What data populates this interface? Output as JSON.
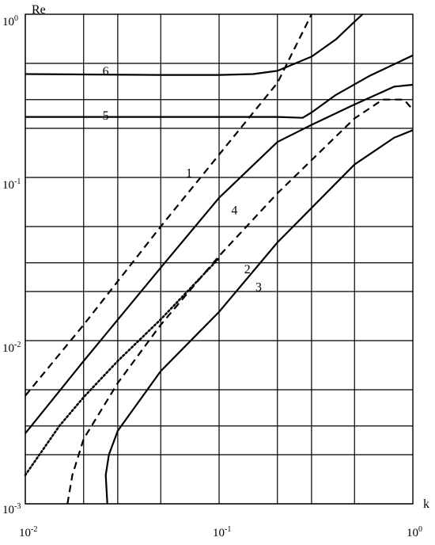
{
  "chart_data": {
    "type": "line",
    "x_scale": "log",
    "y_scale": "log",
    "xlim": [
      0.01,
      1
    ],
    "ylim": [
      0.001,
      1
    ],
    "xlabel": "k",
    "ylabel": "Re",
    "grid": true,
    "x_major_ticks": [
      {
        "value": 0.01,
        "base": "10",
        "exp": "-2"
      },
      {
        "value": 0.1,
        "base": "10",
        "exp": "-1"
      },
      {
        "value": 1,
        "base": "10",
        "exp": "0"
      }
    ],
    "y_major_ticks": [
      {
        "value": 0.001,
        "base": "10",
        "exp": "-3"
      },
      {
        "value": 0.01,
        "base": "10",
        "exp": "-2"
      },
      {
        "value": 0.1,
        "base": "10",
        "exp": "-1"
      },
      {
        "value": 1,
        "base": "10",
        "exp": "0"
      }
    ],
    "series": [
      {
        "name": "1",
        "style": "dashed",
        "label_at": [
          0.07,
          0.105
        ],
        "x": [
          0.01,
          0.02,
          0.05,
          0.1,
          0.2,
          0.3
        ],
        "y": [
          0.0046,
          0.0125,
          0.05,
          0.138,
          0.38,
          1.0
        ]
      },
      {
        "name": "2",
        "style": "dashed",
        "label_at": [
          0.14,
          0.027
        ],
        "x": [
          0.0165,
          0.0175,
          0.02,
          0.03,
          0.05,
          0.1,
          0.2,
          0.5,
          0.7,
          0.9,
          1.0
        ],
        "y": [
          0.001,
          0.0015,
          0.0025,
          0.0055,
          0.0125,
          0.033,
          0.08,
          0.23,
          0.3,
          0.3,
          0.26
        ]
      },
      {
        "name": "2 (dotted)",
        "style": "dotted",
        "x": [
          0.01,
          0.015,
          0.02,
          0.03,
          0.05,
          0.1
        ],
        "y": [
          0.0015,
          0.003,
          0.0045,
          0.0075,
          0.0135,
          0.032
        ]
      },
      {
        "name": "3",
        "style": "solid",
        "label_at": [
          0.16,
          0.021
        ],
        "x": [
          0.0265,
          0.026,
          0.027,
          0.03,
          0.05,
          0.1,
          0.2,
          0.5,
          0.8,
          1.0
        ],
        "y": [
          0.001,
          0.0015,
          0.002,
          0.0028,
          0.0065,
          0.015,
          0.04,
          0.12,
          0.175,
          0.195
        ]
      },
      {
        "name": "4",
        "style": "solid",
        "label_at": [
          0.12,
          0.062
        ],
        "x": [
          0.01,
          0.02,
          0.05,
          0.1,
          0.2,
          0.3,
          0.5,
          0.8,
          1.0
        ],
        "y": [
          0.0027,
          0.0075,
          0.028,
          0.075,
          0.165,
          0.21,
          0.28,
          0.36,
          0.37
        ]
      },
      {
        "name": "5",
        "style": "solid",
        "label_at": [
          0.026,
          0.235
        ],
        "x": [
          0.01,
          0.1,
          0.2,
          0.27,
          0.3,
          0.4,
          0.6,
          1.0
        ],
        "y": [
          0.235,
          0.235,
          0.235,
          0.232,
          0.25,
          0.32,
          0.42,
          0.56
        ]
      },
      {
        "name": "6",
        "style": "solid",
        "label_at": [
          0.026,
          0.44
        ],
        "x": [
          0.01,
          0.05,
          0.1,
          0.15,
          0.2,
          0.3,
          0.4,
          0.5,
          0.55
        ],
        "y": [
          0.43,
          0.425,
          0.425,
          0.43,
          0.45,
          0.55,
          0.7,
          0.9,
          1.0
        ]
      }
    ]
  }
}
